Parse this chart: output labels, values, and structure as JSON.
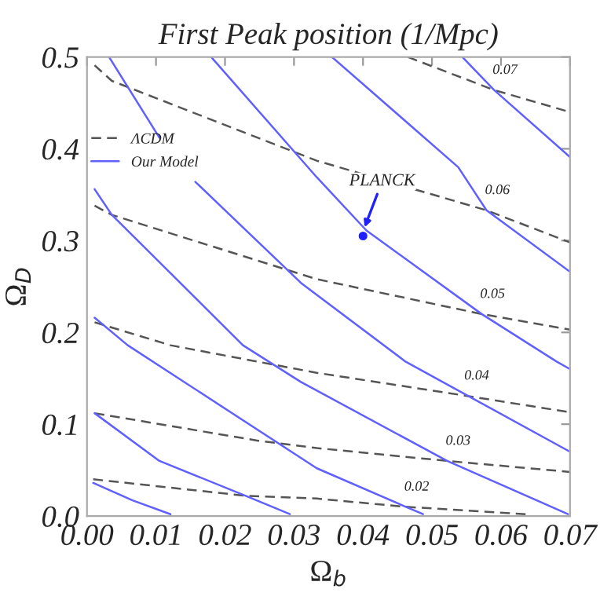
{
  "chart_data": {
    "type": "line",
    "title": "First Peak position (1/Mpc)",
    "xlabel": "Ω$_{b}$",
    "ylabel": "Ω$_{D}$",
    "xlim": [
      0,
      0.07
    ],
    "ylim": [
      0,
      0.5
    ],
    "xticks": [
      {
        "value": 0,
        "label": "0.00"
      },
      0.01,
      0.02,
      0.03,
      0.04,
      0.05,
      0.06,
      0.07
    ],
    "yticks": [
      {
        "value": 0,
        "label": "0.0"
      },
      0.1,
      0.2,
      0.3,
      0.4,
      0.5
    ],
    "grid": false,
    "legend": "top left",
    "marker": "none",
    "series": [
      {
        "name": "ΛCDM",
        "color": "#555555",
        "line_style": "dashed",
        "x": [
          0.0011,
          0.0036,
          0.0333,
          0.0579,
          0.07
        ],
        "values": [
          0.491,
          0.474,
          0.387,
          0.333,
          0.298
        ]
      },
      {
        "color": "#555555",
        "line_style": "dashed",
        "x": [
          0.0465,
          0.059,
          0.07
        ],
        "values": [
          0.5,
          0.464,
          0.44
        ]
      },
      {
        "color": "#555555",
        "line_style": "dashed",
        "x": [
          0.0011,
          0.0036,
          0.0333,
          0.0572,
          0.07
        ],
        "values": [
          0.338,
          0.328,
          0.258,
          0.22,
          0.203
        ]
      },
      {
        "color": "#555555",
        "line_style": "dashed",
        "x": [
          0.0011,
          0.0121,
          0.0333,
          0.0549,
          0.07
        ],
        "values": [
          0.211,
          0.186,
          0.156,
          0.131,
          0.113
        ]
      },
      {
        "color": "#555555",
        "line_style": "dashed",
        "x": [
          0.0011,
          0.0248,
          0.0333,
          0.0522,
          0.07
        ],
        "values": [
          0.112,
          0.082,
          0.074,
          0.06,
          0.048
        ]
      },
      {
        "color": "#555555",
        "line_style": "dashed",
        "x": [
          0.0009,
          0.023,
          0.0333,
          0.0462,
          0.0636
        ],
        "values": [
          0.04,
          0.022,
          0.019,
          0.01,
          0.002
        ]
      },
      {
        "name": "Our Model",
        "color": "#6060ff",
        "line_style": "solid",
        "x": [
          0.0032,
          0.0105,
          0.013,
          0.0157,
          0.031,
          0.0462,
          0.07
        ],
        "values": [
          0.5,
          0.412,
          null,
          0.364,
          0.254,
          0.168,
          0.07
        ]
      },
      {
        "color": "#6060ff",
        "line_style": "solid",
        "x": [
          0.018,
          0.0333,
          0.0405,
          0.0572,
          0.0681,
          0.07
        ],
        "values": [
          0.5,
          0.369,
          0.311,
          0.22,
          0.168,
          0.16
        ]
      },
      {
        "color": "#6060ff",
        "line_style": "solid",
        "x": [
          0.0355,
          0.0538,
          0.0579,
          0.07
        ],
        "values": [
          0.5,
          0.38,
          0.333,
          0.266
        ]
      },
      {
        "color": "#6060ff",
        "line_style": "solid",
        "x": [
          0.0544,
          0.059,
          0.07
        ],
        "values": [
          0.5,
          0.464,
          0.391
        ]
      },
      {
        "color": "#6060ff",
        "line_style": "solid",
        "x": [
          0.0011,
          0.0036,
          0.0226,
          0.031,
          0.0522,
          0.0697
        ],
        "values": [
          0.356,
          0.328,
          0.186,
          0.146,
          0.06,
          0.002
        ]
      },
      {
        "color": "#6060ff",
        "line_style": "solid",
        "x": [
          0.0011,
          0.0059,
          0.0333,
          0.0462,
          0.0487
        ],
        "values": [
          0.216,
          0.186,
          0.052,
          0.01,
          0.002
        ]
      },
      {
        "color": "#6060ff",
        "line_style": "solid",
        "x": [
          0.0011,
          0.0105,
          0.023,
          0.0294
        ],
        "values": [
          0.112,
          0.06,
          0.022,
          0.002
        ]
      },
      {
        "color": "#6060ff",
        "line_style": "solid",
        "x": [
          0.0009,
          0.0066,
          0.0121
        ],
        "values": [
          0.036,
          0.017,
          0.002
        ]
      },
      {
        "type": "scatter",
        "color": "#2020ff",
        "marker": "circle",
        "x": [
          0.04
        ],
        "values": [
          0.305
        ]
      }
    ],
    "annotations": [
      {
        "text": "PLANCK",
        "x": 0.04,
        "y": 0.31
      },
      {
        "text": "0.07",
        "x": 0.059,
        "y": 0.464
      },
      {
        "text": "0.06",
        "x": 0.0579,
        "y": 0.333
      },
      {
        "text": "0.05",
        "x": 0.0572,
        "y": 0.22
      },
      {
        "text": "0.04",
        "x": 0.0549,
        "y": 0.131
      },
      {
        "text": "0.03",
        "x": 0.0522,
        "y": 0.06
      },
      {
        "text": "0.02",
        "x": 0.0462,
        "y": 0.01
      }
    ]
  }
}
